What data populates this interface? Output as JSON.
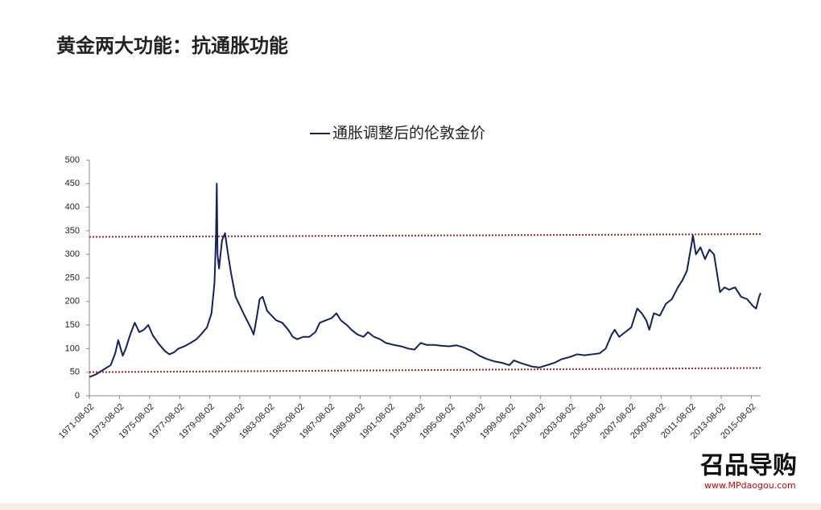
{
  "title": "黄金两大功能：抗通胀功能",
  "watermark": {
    "logo": "召品导购",
    "url": "www.MPdaogou.com"
  },
  "chart_data": {
    "type": "line",
    "x": [
      1971.6,
      1972.0,
      1972.5,
      1973.0,
      1973.3,
      1973.5,
      1973.8,
      1974.0,
      1974.3,
      1974.6,
      1974.9,
      1975.2,
      1975.5,
      1975.8,
      1976.2,
      1976.6,
      1976.9,
      1977.2,
      1977.5,
      1977.9,
      1978.3,
      1978.7,
      1979.0,
      1979.4,
      1979.7,
      1979.9,
      1980.0,
      1980.05,
      1980.1,
      1980.2,
      1980.4,
      1980.6,
      1980.8,
      1981.0,
      1981.3,
      1981.6,
      1981.9,
      1982.3,
      1982.5,
      1982.7,
      1982.9,
      1983.1,
      1983.4,
      1983.7,
      1984.0,
      1984.4,
      1984.8,
      1985.1,
      1985.4,
      1985.8,
      1986.2,
      1986.6,
      1986.9,
      1987.3,
      1987.7,
      1988.0,
      1988.3,
      1988.7,
      1989.0,
      1989.4,
      1989.8,
      1990.1,
      1990.5,
      1990.9,
      1991.3,
      1991.8,
      1992.3,
      1992.8,
      1993.2,
      1993.6,
      1994.0,
      1994.5,
      1995.0,
      1995.5,
      1996.0,
      1996.5,
      1997.0,
      1997.5,
      1998.0,
      1998.5,
      1999.0,
      1999.5,
      1999.8,
      2000.2,
      2000.6,
      2001.0,
      2001.5,
      2002.0,
      2002.5,
      2003.0,
      2003.5,
      2004.0,
      2004.5,
      2005.0,
      2005.5,
      2005.9,
      2006.3,
      2006.5,
      2006.8,
      2007.2,
      2007.6,
      2008.0,
      2008.3,
      2008.6,
      2008.8,
      2009.1,
      2009.5,
      2009.9,
      2010.3,
      2010.7,
      2011.0,
      2011.3,
      2011.6,
      2011.7,
      2011.9,
      2012.2,
      2012.5,
      2012.8,
      2013.1,
      2013.3,
      2013.5,
      2013.8,
      2014.1,
      2014.5,
      2014.9,
      2015.3,
      2015.7,
      2015.9,
      2016.1,
      2016.2
    ],
    "series": [
      {
        "name": "通胀调整后的伦敦金价",
        "color": "#14215a",
        "values": [
          40,
          45,
          55,
          65,
          90,
          118,
          85,
          100,
          130,
          155,
          135,
          140,
          150,
          128,
          110,
          95,
          88,
          92,
          100,
          105,
          112,
          120,
          130,
          145,
          175,
          240,
          340,
          450,
          300,
          270,
          330,
          345,
          300,
          260,
          210,
          190,
          170,
          145,
          130,
          165,
          205,
          210,
          180,
          170,
          160,
          155,
          140,
          125,
          120,
          125,
          125,
          135,
          155,
          160,
          165,
          175,
          160,
          150,
          140,
          130,
          125,
          135,
          125,
          120,
          112,
          108,
          105,
          100,
          98,
          112,
          108,
          108,
          106,
          105,
          107,
          102,
          95,
          85,
          78,
          73,
          70,
          65,
          75,
          70,
          66,
          62,
          60,
          65,
          70,
          78,
          82,
          88,
          86,
          88,
          90,
          100,
          130,
          140,
          125,
          135,
          145,
          185,
          175,
          160,
          140,
          175,
          170,
          195,
          205,
          230,
          245,
          265,
          320,
          340,
          300,
          315,
          290,
          310,
          300,
          260,
          220,
          230,
          225,
          230,
          210,
          205,
          190,
          185,
          210,
          218
        ]
      }
    ],
    "reference_lines": [
      {
        "color": "#b22222",
        "values": [
          337,
          343
        ]
      },
      {
        "color": "#b22222",
        "values": [
          50,
          59
        ]
      }
    ],
    "xlim": [
      1971.58,
      2016.2
    ],
    "xticks": [
      {
        "value": 1971.58,
        "label": "1971-08-02"
      },
      {
        "value": 1973.58,
        "label": "1973-08-02"
      },
      {
        "value": 1975.58,
        "label": "1975-08-02"
      },
      {
        "value": 1977.58,
        "label": "1977-08-02"
      },
      {
        "value": 1979.58,
        "label": "1979-08-02"
      },
      {
        "value": 1981.58,
        "label": "1981-08-02"
      },
      {
        "value": 1983.58,
        "label": "1983-08-02"
      },
      {
        "value": 1985.58,
        "label": "1985-08-02"
      },
      {
        "value": 1987.58,
        "label": "1987-08-02"
      },
      {
        "value": 1989.58,
        "label": "1989-08-02"
      },
      {
        "value": 1991.58,
        "label": "1991-08-02"
      },
      {
        "value": 1993.58,
        "label": "1993-08-02"
      },
      {
        "value": 1995.58,
        "label": "1995-08-02"
      },
      {
        "value": 1997.58,
        "label": "1997-08-02"
      },
      {
        "value": 1999.58,
        "label": "1999-08-02"
      },
      {
        "value": 2001.58,
        "label": "2001-08-02"
      },
      {
        "value": 2003.58,
        "label": "2003-08-02"
      },
      {
        "value": 2005.58,
        "label": "2005-08-02"
      },
      {
        "value": 2007.58,
        "label": "2007-08-02"
      },
      {
        "value": 2009.58,
        "label": "2009-08-02"
      },
      {
        "value": 2011.58,
        "label": "2011-08-02"
      },
      {
        "value": 2013.58,
        "label": "2013-08-02"
      },
      {
        "value": 2015.58,
        "label": "2015-08-02"
      }
    ],
    "ylim": [
      0,
      500
    ],
    "yticks": [
      0,
      50,
      100,
      150,
      200,
      250,
      300,
      350,
      400,
      450,
      500
    ]
  }
}
